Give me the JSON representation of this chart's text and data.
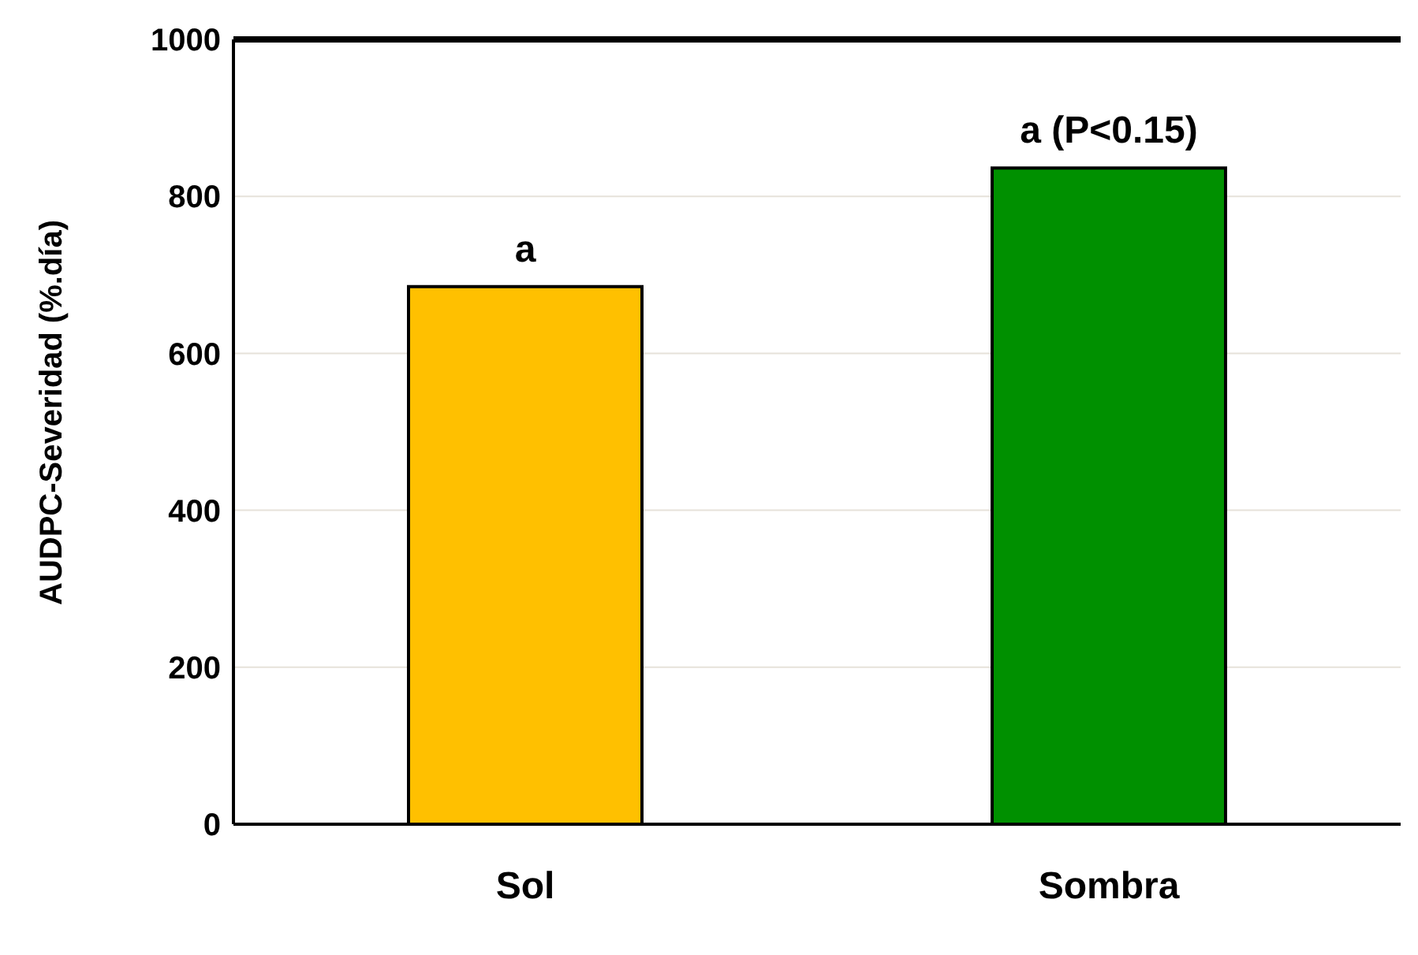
{
  "chart_data": {
    "type": "bar",
    "ylabel": "AUDPC-Severidad (%.día)",
    "categories": [
      "Sol",
      "Sombra"
    ],
    "values": [
      685,
      836
    ],
    "colors": [
      "#ffc000",
      "#009000"
    ],
    "ylim": [
      0,
      1000
    ],
    "yticks": [
      0,
      200,
      400,
      600,
      800,
      1000
    ],
    "grid": "y",
    "annotations": [
      {
        "text": "a",
        "x": "Sol",
        "y": 685
      },
      {
        "text": "a (P<0.15)",
        "x": "Sombra",
        "y": 836
      }
    ]
  }
}
